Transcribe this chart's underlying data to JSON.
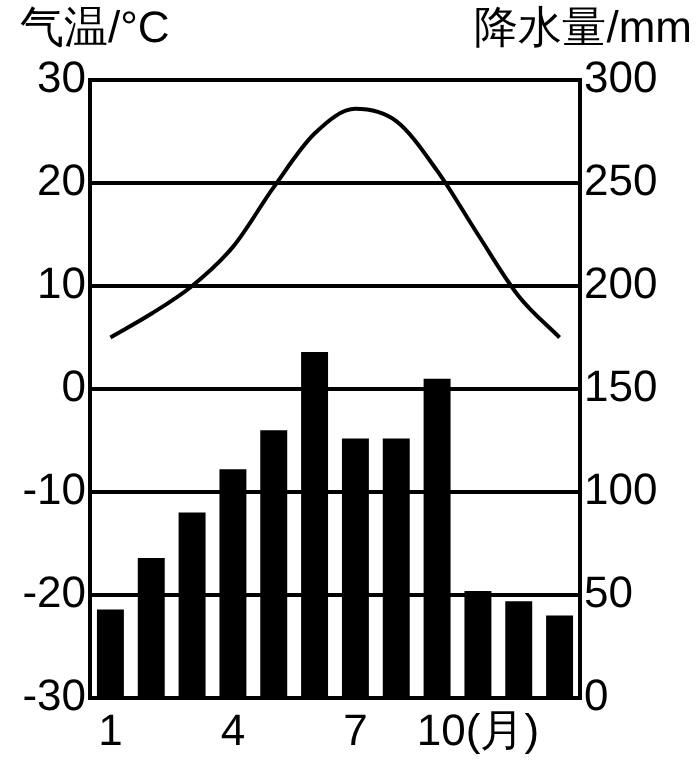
{
  "chart_data": {
    "type": "bar",
    "ylabel": "气温/°C",
    "y2label": "降水量/mm",
    "categories": [
      "1",
      null,
      null,
      "4",
      null,
      null,
      "7",
      null,
      null,
      "10(月)",
      null,
      null
    ],
    "series": [
      {
        "axis": "y2",
        "color": "#000000",
        "values": [
          43,
          68,
          90,
          111,
          130,
          168,
          126,
          126,
          155,
          52,
          47,
          40
        ]
      },
      {
        "type": "line",
        "axis": "y",
        "color": "#000000",
        "marker": "none",
        "line_style": "solid",
        "values": [
          5,
          7.3,
          10,
          13.8,
          19.6,
          24.8,
          27.2,
          26,
          21.2,
          15,
          9,
          5
        ]
      }
    ],
    "ylim": [
      -30,
      30
    ],
    "yticks": [
      -30,
      -20,
      -10,
      0,
      10,
      20,
      30
    ],
    "y2lim": [
      0,
      300
    ],
    "y2ticks": [
      0,
      50,
      100,
      150,
      200,
      250,
      300
    ],
    "grid": "y"
  }
}
